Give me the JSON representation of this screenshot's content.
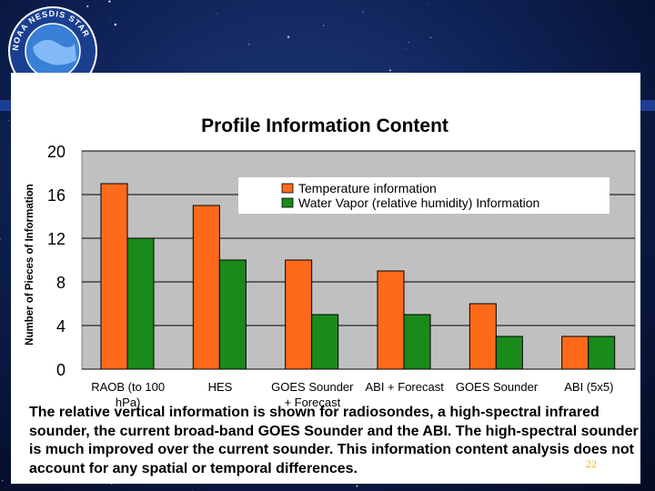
{
  "logo": {
    "ring_text": "NOAA NESDIS STAR"
  },
  "chart_data": {
    "type": "bar",
    "title": "Profile Information Content",
    "ylabel": "Number of Pieces of Information",
    "xlabel": "",
    "ylim": [
      0,
      20
    ],
    "yticks": [
      0,
      4,
      8,
      12,
      16,
      20
    ],
    "categories": [
      [
        "RAOB (to 100",
        "hPa)"
      ],
      [
        "HES"
      ],
      [
        "GOES Sounder",
        "+ Forecast"
      ],
      [
        "ABI + Forecast"
      ],
      [
        "GOES Sounder"
      ],
      [
        "ABI (5x5)"
      ]
    ],
    "series": [
      {
        "name": "Temperature information",
        "color": "#ff6a1a",
        "values": [
          17,
          15,
          10,
          9,
          6,
          3
        ]
      },
      {
        "name": "Water Vapor (relative humidity) Information",
        "color": "#1a8a1a",
        "values": [
          12,
          10,
          5,
          5,
          3,
          3
        ]
      }
    ],
    "grid": true,
    "legend": "top-right"
  },
  "caption": "The relative vertical information is shown for radiosondes, a high-spectral infrared sounder, the current broad-band GOES Sounder and the ABI. The high-spectral sounder is much improved over the current sounder. This information content analysis does not account for any spatial or temporal differences.",
  "page_number": "22"
}
